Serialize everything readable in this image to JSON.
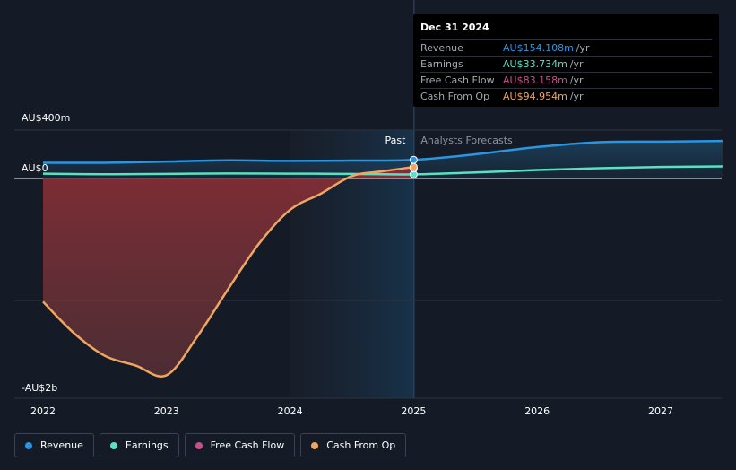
{
  "chart_data": {
    "type": "line",
    "title": "",
    "y_ticks": [
      "AU$400m",
      "AU$0",
      "-AU$2b"
    ],
    "x_ticks": [
      "2022",
      "2023",
      "2024",
      "2025",
      "2026",
      "2027"
    ],
    "ylim": [
      -2000,
      400
    ],
    "xlim": [
      2021.8,
      2027.5
    ],
    "divider_x": 2025.0,
    "section_labels": {
      "past": "Past",
      "forecast": "Analysts Forecasts"
    },
    "series": [
      {
        "name": "Revenue",
        "color": "#2b95e2",
        "x": [
          2022.0,
          2022.5,
          2023.0,
          2023.5,
          2024.0,
          2024.5,
          2025.0,
          2025.5,
          2026.0,
          2026.5,
          2027.0,
          2027.5
        ],
        "y": [
          130,
          130,
          140,
          150,
          145,
          148,
          154,
          200,
          260,
          300,
          305,
          310
        ]
      },
      {
        "name": "Earnings",
        "color": "#59e1c4",
        "x": [
          2022.0,
          2022.5,
          2023.0,
          2023.5,
          2024.0,
          2024.5,
          2025.0,
          2025.5,
          2026.0,
          2026.5,
          2027.0,
          2027.5
        ],
        "y": [
          40,
          35,
          38,
          42,
          40,
          38,
          34,
          50,
          70,
          85,
          95,
          100
        ]
      },
      {
        "name": "Free Cash Flow",
        "color": "#c94f8a",
        "x": [
          2025.0
        ],
        "y": [
          83
        ]
      },
      {
        "name": "Cash From Op",
        "color": "#f0a660",
        "x": [
          2022.0,
          2022.25,
          2022.5,
          2022.75,
          2023.0,
          2023.25,
          2023.5,
          2023.75,
          2024.0,
          2024.25,
          2024.5,
          2024.75,
          2025.0
        ],
        "y": [
          -1140,
          -1430,
          -1640,
          -1730,
          -1820,
          -1460,
          -1020,
          -600,
          -290,
          -140,
          20,
          60,
          95
        ]
      }
    ]
  },
  "tooltip": {
    "date": "Dec 31 2024",
    "rows": [
      {
        "name": "Revenue",
        "value": "AU$154.108m",
        "unit": "/yr",
        "color": "#2b95e2"
      },
      {
        "name": "Earnings",
        "value": "AU$33.734m",
        "unit": "/yr",
        "color": "#59e1c4"
      },
      {
        "name": "Free Cash Flow",
        "value": "AU$83.158m",
        "unit": "/yr",
        "color": "#c94f8a"
      },
      {
        "name": "Cash From Op",
        "value": "AU$94.954m",
        "unit": "/yr",
        "color": "#f0a660"
      }
    ]
  },
  "legend": [
    {
      "label": "Revenue",
      "color": "#2b95e2"
    },
    {
      "label": "Earnings",
      "color": "#59e1c4"
    },
    {
      "label": "Free Cash Flow",
      "color": "#c94f8a"
    },
    {
      "label": "Cash From Op",
      "color": "#f0a660"
    }
  ]
}
